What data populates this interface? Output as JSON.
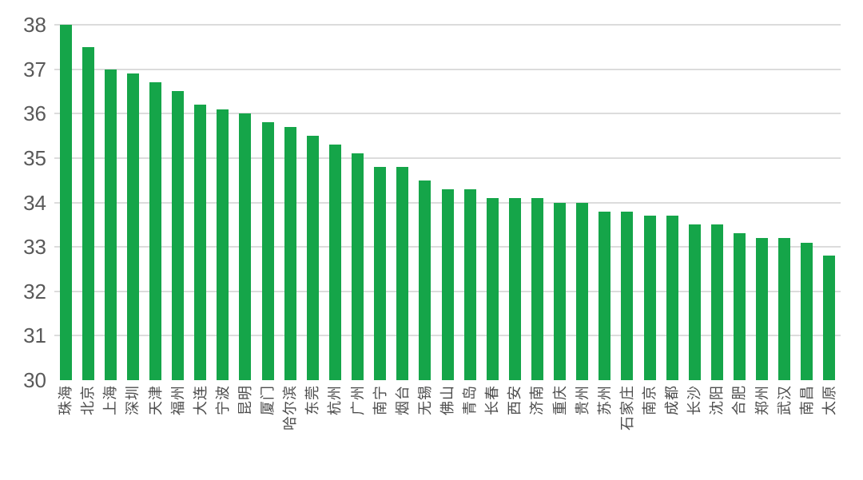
{
  "chart_data": {
    "type": "bar",
    "title": "",
    "xlabel": "",
    "ylabel": "",
    "categories": [
      "珠海",
      "北京",
      "上海",
      "深圳",
      "天津",
      "福州",
      "大连",
      "宁波",
      "昆明",
      "厦门",
      "哈尔滨",
      "东莞",
      "杭州",
      "广州",
      "南宁",
      "烟台",
      "无锡",
      "佛山",
      "青岛",
      "长春",
      "西安",
      "济南",
      "重庆",
      "贵州",
      "苏州",
      "石家庄",
      "南京",
      "成都",
      "长沙",
      "沈阳",
      "合肥",
      "郑州",
      "武汉",
      "南昌",
      "太原"
    ],
    "values": [
      38.0,
      37.5,
      37.0,
      36.9,
      36.7,
      36.5,
      36.2,
      36.1,
      36.0,
      35.8,
      35.7,
      35.5,
      35.3,
      35.1,
      34.8,
      34.8,
      34.5,
      34.3,
      34.3,
      34.1,
      34.1,
      34.1,
      34.0,
      34.0,
      33.8,
      33.8,
      33.7,
      33.7,
      33.5,
      33.5,
      33.3,
      33.2,
      33.2,
      33.1,
      32.8
    ],
    "ylim": [
      30,
      38
    ],
    "yticks": [
      30,
      31,
      32,
      33,
      34,
      35,
      36,
      37,
      38
    ],
    "grid": true,
    "legend": false,
    "x_label_rotation_deg": -90,
    "bar_color": "#15A549",
    "gridline_color": "#DCDCDC",
    "axis_label_color": "#595959"
  }
}
